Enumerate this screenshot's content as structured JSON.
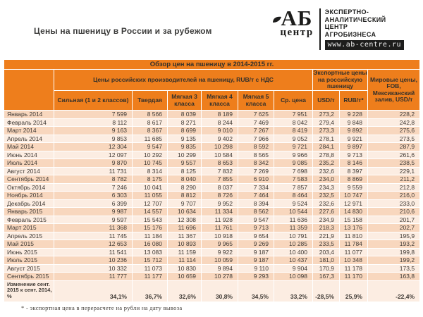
{
  "page": {
    "title": "Цены на пшеницу в России и за рубежом"
  },
  "logo": {
    "abbr": "АБ",
    "sub": "центр",
    "tagline_lines": [
      "ЭКСПЕРТНО-",
      "АНАЛИТИЧЕСКИЙ",
      "ЦЕНТР",
      "АГРОБИЗНЕСА"
    ],
    "website": "www.ab-centre.ru"
  },
  "table": {
    "title": "Обзор цен на пшеницу в 2014-2015 гг.",
    "group_producers": "Цены российских производителей  на пшеницу,  RUB/т  с НДС",
    "group_export": "Экспортные цены на российскую пшеницу",
    "group_world": "Мировые цены, FOB, Мексиканский залив, USD/т",
    "producer_columns": [
      "Сильная (1 и 2 классов)",
      "Твердая",
      "Мягкая 3 класса",
      "Мягкая 4 класса",
      "Мягкая 5 класса",
      "Ср. цена"
    ],
    "export_columns": [
      "USD/т",
      "RUB/т*"
    ],
    "rows": [
      {
        "month": "Январь 2014",
        "values": [
          "7 599",
          "8 566",
          "8 039",
          "8 189",
          "7 625",
          "7 951",
          "273,2",
          "9 228",
          "228,2"
        ]
      },
      {
        "month": "Февраль 2014",
        "values": [
          "8 112",
          "8 617",
          "8 271",
          "8 244",
          "7 469",
          "8 042",
          "279,4",
          "9 848",
          "242,8"
        ]
      },
      {
        "month": "Март 2014",
        "values": [
          "9 163",
          "8 367",
          "8 699",
          "9 010",
          "7 267",
          "8 419",
          "273,3",
          "9 892",
          "275,6"
        ]
      },
      {
        "month": "Апрель 2014",
        "values": [
          "9 853",
          "11 685",
          "9 135",
          "9 402",
          "7 966",
          "9 052",
          "278,1",
          "9 921",
          "273,5"
        ]
      },
      {
        "month": "Май 2014",
        "values": [
          "12 304",
          "9 547",
          "9 835",
          "10 298",
          "8 592",
          "9 721",
          "284,1",
          "9 897",
          "287,9"
        ]
      },
      {
        "month": "Июнь 2014",
        "values": [
          "12 097",
          "10 292",
          "10 299",
          "10 584",
          "8 565",
          "9 966",
          "278,8",
          "9 713",
          "261,6"
        ]
      },
      {
        "month": "Июль 2014",
        "values": [
          "9 870",
          "10 745",
          "9 557",
          "8 653",
          "8 342",
          "9 085",
          "235,2",
          "8 146",
          "238,5"
        ]
      },
      {
        "month": "Август 2014",
        "values": [
          "11 731",
          "8 314",
          "8 125",
          "7 832",
          "7 269",
          "7 698",
          "232,6",
          "8 397",
          "229,1"
        ]
      },
      {
        "month": "Сентябрь 2014",
        "values": [
          "8 782",
          "8 175",
          "8 040",
          "7 855",
          "6 910",
          "7 583",
          "234,0",
          "8 869",
          "211,2"
        ]
      },
      {
        "month": "Октябрь 2014",
        "values": [
          "7 246",
          "10 041",
          "8 290",
          "8 037",
          "7 334",
          "7 857",
          "234,3",
          "9 559",
          "212,8"
        ]
      },
      {
        "month": "Ноябрь 2014",
        "values": [
          "6 303",
          "11 055",
          "8 812",
          "8 726",
          "7 464",
          "8 464",
          "232,5",
          "10 747",
          "216,0"
        ]
      },
      {
        "month": "Декабрь 2014",
        "values": [
          "6 399",
          "12 707",
          "9 707",
          "9 952",
          "8 394",
          "9 524",
          "232,6",
          "12 971",
          "233,0"
        ]
      },
      {
        "month": "Январь 2015",
        "values": [
          "9 987",
          "14 557",
          "10 634",
          "11 334",
          "8 562",
          "10 544",
          "227,6",
          "14 830",
          "210,6"
        ]
      },
      {
        "month": "Февраль 2015",
        "values": [
          "9 597",
          "15 543",
          "12 308",
          "11 928",
          "9 547",
          "11 636",
          "234,9",
          "15 158",
          "201,7"
        ]
      },
      {
        "month": "Март 2015",
        "values": [
          "11 368",
          "15 176",
          "11 696",
          "11 761",
          "9 713",
          "11 359",
          "218,3",
          "13 176",
          "202,7"
        ]
      },
      {
        "month": "Апрель 2015",
        "values": [
          "11 745",
          "11 184",
          "11 367",
          "10 918",
          "9 654",
          "10 791",
          "221,9",
          "11 810",
          "195,9"
        ]
      },
      {
        "month": "Май 2015",
        "values": [
          "12 653",
          "16 080",
          "10 893",
          "9 965",
          "9 269",
          "10 285",
          "233,5",
          "11 784",
          "193,2"
        ]
      },
      {
        "month": "Июнь 2015",
        "values": [
          "11 541",
          "13 083",
          "11 159",
          "9 922",
          "9 187",
          "10 400",
          "203,4",
          "11 077",
          "199,8"
        ]
      },
      {
        "month": "Июль 2015",
        "values": [
          "10 236",
          "15 712",
          "11 114",
          "10 059",
          "9 187",
          "10 437",
          "181,0",
          "10 348",
          "199,2"
        ]
      },
      {
        "month": "Август 2015",
        "values": [
          "10 332",
          "11 073",
          "10 830",
          "9 894",
          "9 110",
          "9 904",
          "170,9",
          "11 178",
          "173,5"
        ]
      },
      {
        "month": "Сентябрь 2015",
        "values": [
          "11 777",
          "11 177",
          "10 659",
          "10 278",
          "9 293",
          "10 098",
          "167,3",
          "11 170",
          "163,8"
        ]
      }
    ],
    "change_row": {
      "label": "Изменение сент. 2015 к сент. 2014, %",
      "values": [
        "34,1%",
        "36,7%",
        "32,6%",
        "30,8%",
        "34,5%",
        "33,2%",
        "-28,5%",
        "25,9%",
        "-22,4%"
      ]
    },
    "footnote": "* - экспортная цена в перерасчете на рубли на дату вывоза"
  },
  "colors": {
    "accent_orange": "#ee7e1c",
    "title_bar_top_line": "#a04a08",
    "row_dark": "#f8d7be",
    "row_light": "#fcede2",
    "header_text": "#33302b",
    "body_text": "#3f3a35",
    "logo_black": "#1d1d1c"
  }
}
